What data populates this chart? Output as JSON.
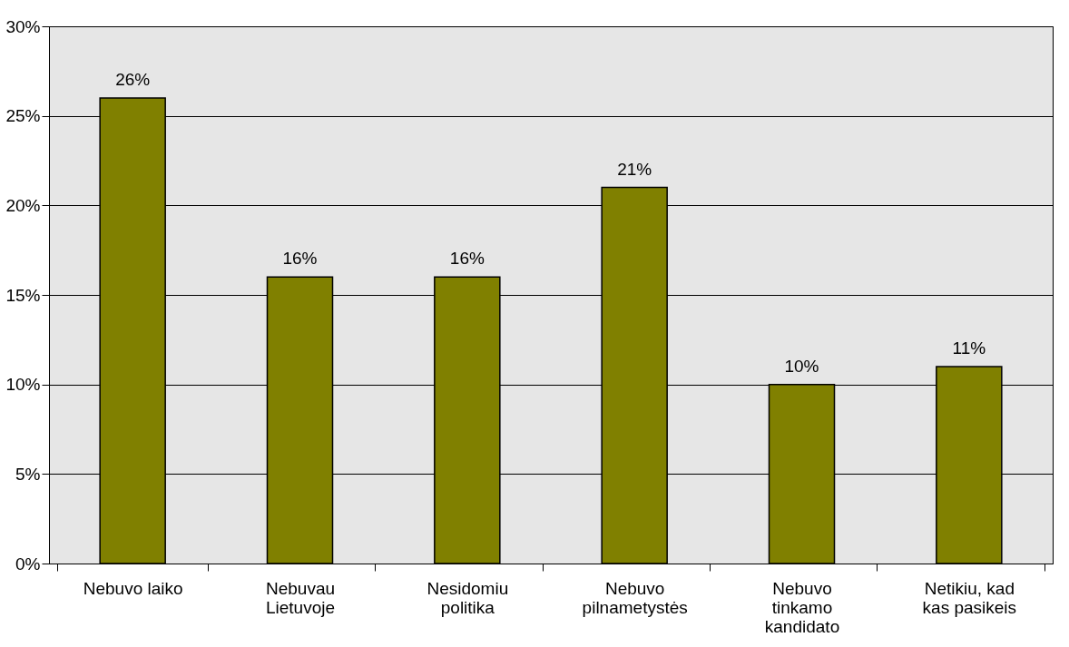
{
  "chart_data": {
    "type": "bar",
    "categories": [
      "Nebuvo laiko",
      "Nebuvau Lietuvoje",
      "Nesidomiu politika",
      "Nebuvo pilnametystės",
      "Nebuvo tinkamo kandidato",
      "Netikiu, kad kas pasikeis"
    ],
    "values": [
      26,
      16,
      16,
      21,
      10,
      11
    ],
    "value_labels": [
      "26%",
      "16%",
      "16%",
      "21%",
      "10%",
      "11%"
    ],
    "color": "#808000",
    "ylim": [
      0,
      30
    ],
    "yticks": [
      {
        "value": 0,
        "label": "0%"
      },
      {
        "value": 5,
        "label": "5%"
      },
      {
        "value": 10,
        "label": "10%"
      },
      {
        "value": 15,
        "label": "15%"
      },
      {
        "value": 20,
        "label": "20%"
      },
      {
        "value": 25,
        "label": "25%"
      },
      {
        "value": 30,
        "label": "30%"
      }
    ],
    "grid": "y"
  }
}
